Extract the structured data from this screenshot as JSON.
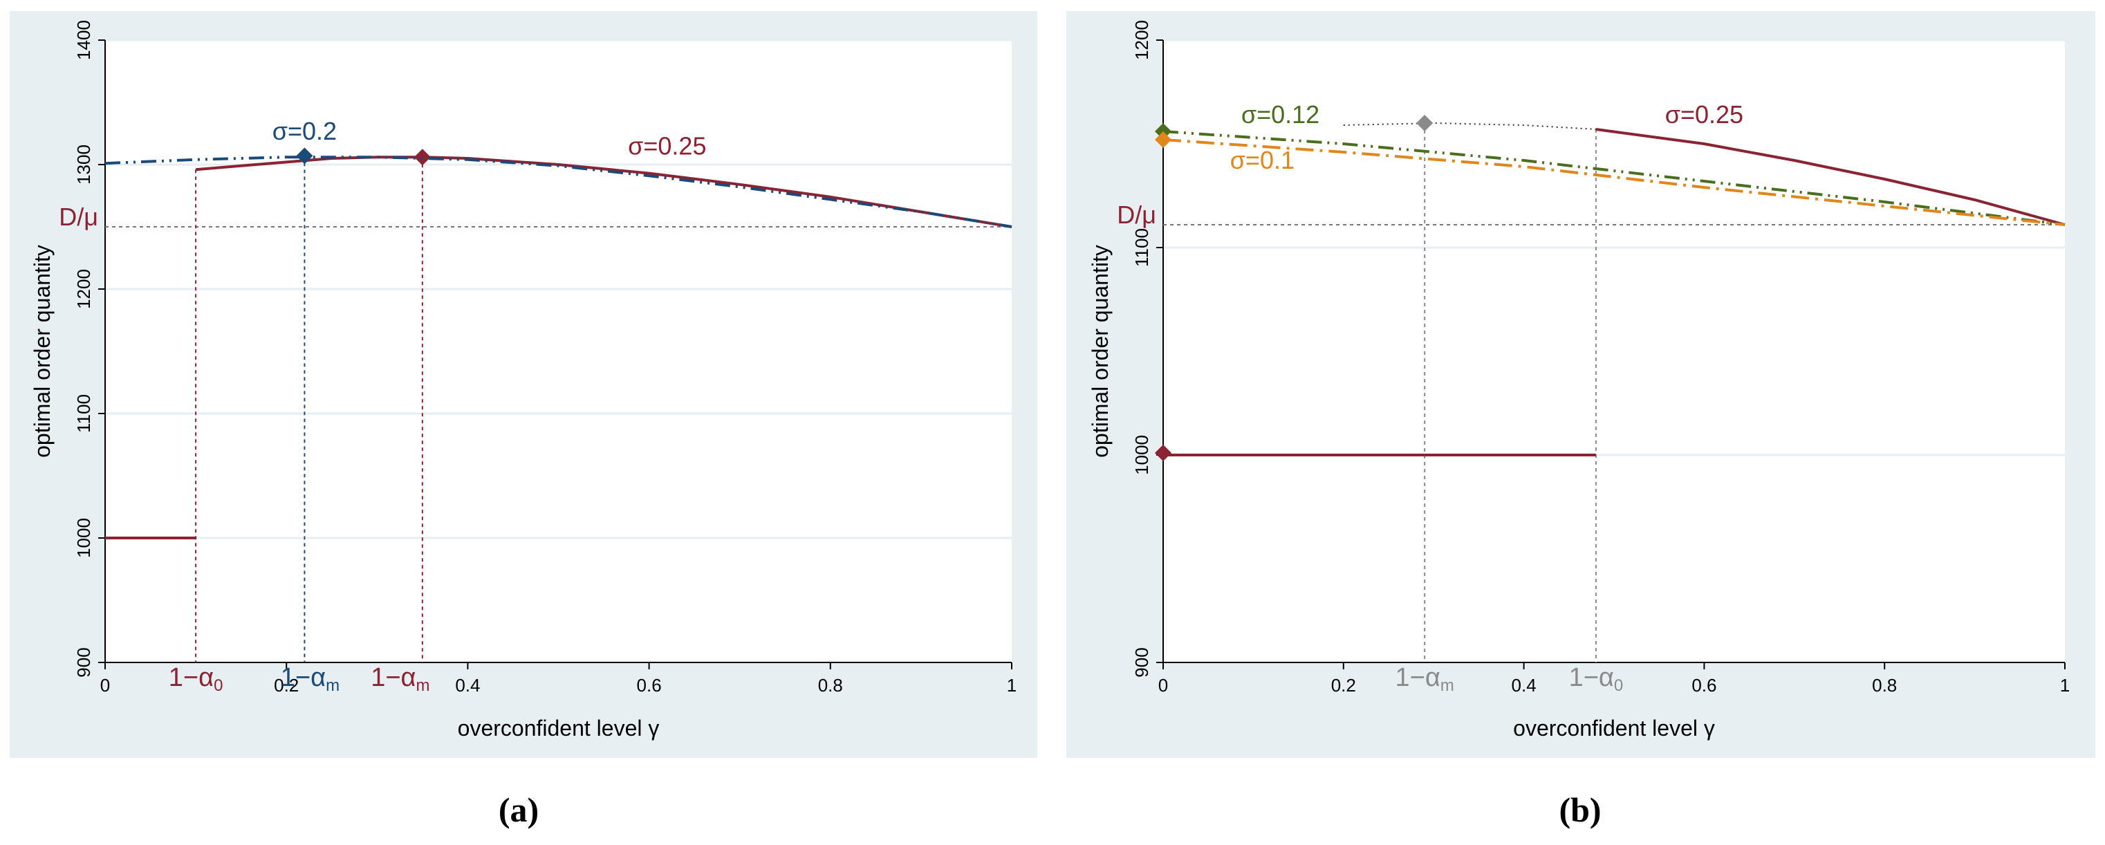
{
  "colors": {
    "red": "#8b2332",
    "blue": "#1a4a78",
    "green": "#4a6e1e",
    "orange": "#e0861a",
    "gray": "#8a8a8a",
    "axis": "#000000",
    "grid": "#e6eef2",
    "panel": "#e8eff3"
  },
  "chart_data": [
    {
      "id": "a",
      "type": "line",
      "caption": "(a)",
      "xlabel": "overconfident level γ",
      "ylabel": "optimal order quantity",
      "xlim": [
        0,
        1
      ],
      "ylim": [
        900,
        1400
      ],
      "xticks": [
        0,
        0.2,
        0.4,
        0.6,
        0.8,
        1
      ],
      "xtick_labels": [
        "0",
        "0.2",
        "0.4",
        "0.6",
        "0.8",
        "1"
      ],
      "yticks": [
        900,
        1000,
        1100,
        1200,
        1300,
        1400
      ],
      "ytick_labels": [
        "900",
        "1000",
        "1100",
        "1200",
        "1300",
        "1400"
      ],
      "hline": {
        "y": 1250,
        "label": "D/μ"
      },
      "series": [
        {
          "name": "σ=0.25",
          "color_key": "red",
          "style": "solid",
          "segments": [
            {
              "x": [
                0,
                0.1
              ],
              "y": [
                1000,
                1000
              ]
            },
            {
              "x": [
                0.1,
                0.15,
                0.2,
                0.25,
                0.3,
                0.35,
                0.4,
                0.5,
                0.6,
                0.7,
                0.8,
                0.9,
                1.0
              ],
              "y": [
                1296,
                1299,
                1302,
                1305,
                1306,
                1306,
                1305,
                1300,
                1293,
                1284,
                1274,
                1262,
                1250
              ]
            }
          ],
          "marker": {
            "x": 0.35,
            "y": 1306
          },
          "label": {
            "text": "σ=0.25",
            "x": 0.62,
            "y": 1308
          }
        },
        {
          "name": "σ=0.2",
          "color_key": "blue",
          "style": "dashdot",
          "segments": [
            {
              "x": [
                0,
                0.1,
                0.2,
                0.22,
                0.3,
                0.4,
                0.5,
                0.6,
                0.7,
                0.8,
                0.9,
                1.0
              ],
              "y": [
                1301,
                1304,
                1306,
                1306,
                1306,
                1304,
                1299,
                1291,
                1282,
                1272,
                1262,
                1250
              ]
            }
          ],
          "marker": {
            "x": 0.22,
            "y": 1307
          },
          "label": {
            "text": "σ=0.2",
            "x": 0.22,
            "y": 1320
          }
        }
      ],
      "vlines": [
        {
          "x": 0.1,
          "y_top": 1296,
          "color_key": "red",
          "label": "1−α₀"
        },
        {
          "x": 0.22,
          "y_top": 1307,
          "color_key": "blue",
          "label": "1−αₘ"
        },
        {
          "x": 0.35,
          "y_top": 1306,
          "color_key": "red",
          "label": "1−αₘ"
        }
      ]
    },
    {
      "id": "b",
      "type": "line",
      "caption": "(b)",
      "xlabel": "overconfident level γ",
      "ylabel": "optimal order quantity",
      "xlim": [
        0,
        1
      ],
      "ylim": [
        900,
        1200
      ],
      "xticks": [
        0,
        0.2,
        0.4,
        0.6,
        0.8,
        1
      ],
      "xtick_labels": [
        "0",
        "0.2",
        "0.4",
        "0.6",
        "0.8",
        "1"
      ],
      "yticks": [
        900,
        1000,
        1100,
        1200
      ],
      "ytick_labels": [
        "900",
        "1000",
        "1100",
        "1200"
      ],
      "hline": {
        "y": 1111,
        "label": "D/μ"
      },
      "series": [
        {
          "name": "σ=0.25",
          "color_key": "red",
          "style": "solid",
          "segments": [
            {
              "x": [
                0,
                0.48
              ],
              "y": [
                1000,
                1000
              ]
            },
            {
              "x": [
                0.48,
                0.6,
                0.7,
                0.8,
                0.9,
                1.0
              ],
              "y": [
                1157,
                1150,
                1142,
                1133,
                1123,
                1111
              ]
            }
          ],
          "marker": {
            "x": 0,
            "y": 1001
          },
          "label": {
            "text": "σ=0.25",
            "x": 0.6,
            "y": 1160
          }
        },
        {
          "name": "σ=0.12",
          "color_key": "green",
          "style": "dashdot",
          "segments": [
            {
              "x": [
                0,
                0.2,
                0.4,
                0.6,
                0.8,
                1.0
              ],
              "y": [
                1156,
                1150,
                1142,
                1132,
                1122,
                1111
              ]
            }
          ],
          "marker": {
            "x": 0,
            "y": 1156
          },
          "label": {
            "text": "σ=0.12",
            "x": 0.13,
            "y": 1160
          }
        },
        {
          "name": "σ=0.1",
          "color_key": "orange",
          "style": "dashed",
          "segments": [
            {
              "x": [
                0,
                0.2,
                0.4,
                0.6,
                0.8,
                1.0
              ],
              "y": [
                1152,
                1146,
                1139,
                1129,
                1120,
                1111
              ]
            }
          ],
          "marker": {
            "x": 0,
            "y": 1152
          },
          "label": {
            "text": "σ=0.1",
            "x": 0.11,
            "y": 1138
          }
        },
        {
          "name": "overconfident boundary",
          "color_key": "gray",
          "style": "dotted",
          "segments": [
            {
              "x": [
                0.2,
                0.3,
                0.4,
                0.48
              ],
              "y": [
                1159,
                1160,
                1159,
                1157
              ]
            }
          ],
          "marker": {
            "x": 0.29,
            "y": 1160
          }
        }
      ],
      "vlines": [
        {
          "x": 0.29,
          "y_top": 1160,
          "color_key": "gray",
          "label": "1−αₘ"
        },
        {
          "x": 0.48,
          "y_top": 1157,
          "color_key": "gray",
          "label": "1−α₀"
        }
      ]
    }
  ]
}
